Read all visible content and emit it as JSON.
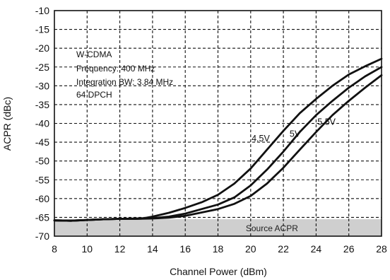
{
  "chart_data": {
    "type": "line",
    "xlabel": "Channel Power (dBm)",
    "ylabel": "ACPR (dBc)",
    "xlim": [
      8,
      28
    ],
    "ylim": [
      -70,
      -10
    ],
    "xticks": [
      8,
      10,
      12,
      14,
      16,
      18,
      20,
      22,
      24,
      26,
      28
    ],
    "yticks": [
      -10,
      -15,
      -20,
      -25,
      -30,
      -35,
      -40,
      -45,
      -50,
      -55,
      -60,
      -65,
      -70
    ],
    "grid": true,
    "annotation_lines": [
      "W-CDMA",
      "Frequency: 400 MHz",
      "Integration BW: 3.84 MHz",
      "64 DPCH"
    ],
    "source_band": {
      "label": "Source ACPR",
      "range": [
        -70,
        -65.5
      ]
    },
    "series": [
      {
        "name": "4.5V",
        "x": [
          8,
          9,
          10,
          11,
          12,
          13,
          13.5,
          14,
          15,
          16,
          17,
          18,
          19,
          20,
          21,
          22,
          23,
          24,
          25,
          26,
          27,
          28
        ],
        "y": [
          -65.8,
          -65.9,
          -65.7,
          -65.5,
          -65.4,
          -65.3,
          -65.2,
          -64.8,
          -63.8,
          -62.5,
          -61.0,
          -59.0,
          -56.0,
          -52.0,
          -47.0,
          -42.0,
          -37.3,
          -33.5,
          -30.0,
          -27.0,
          -24.8,
          -22.8
        ]
      },
      {
        "name": "5V",
        "x": [
          8,
          9,
          10,
          11,
          12,
          13,
          14,
          15,
          16,
          17,
          18,
          19,
          20,
          21,
          22,
          23,
          24,
          25,
          26,
          27,
          28
        ],
        "y": [
          -65.8,
          -65.9,
          -65.7,
          -65.5,
          -65.4,
          -65.4,
          -65.2,
          -64.8,
          -64.0,
          -62.8,
          -61.6,
          -59.7,
          -56.5,
          -52.3,
          -47.5,
          -42.3,
          -37.8,
          -34.0,
          -30.5,
          -27.5,
          -25.0
        ]
      },
      {
        "name": "5.5V",
        "x": [
          8,
          9,
          10,
          11,
          12,
          13,
          14,
          15,
          16,
          17,
          18,
          19,
          20,
          21,
          22,
          23,
          24,
          25,
          26,
          27,
          28
        ],
        "y": [
          -65.8,
          -65.9,
          -65.7,
          -65.5,
          -65.4,
          -65.4,
          -65.3,
          -65.1,
          -64.6,
          -63.7,
          -62.8,
          -61.4,
          -59.3,
          -56.0,
          -51.8,
          -47.0,
          -42.3,
          -37.8,
          -34.0,
          -30.5,
          -27.2
        ]
      }
    ]
  }
}
